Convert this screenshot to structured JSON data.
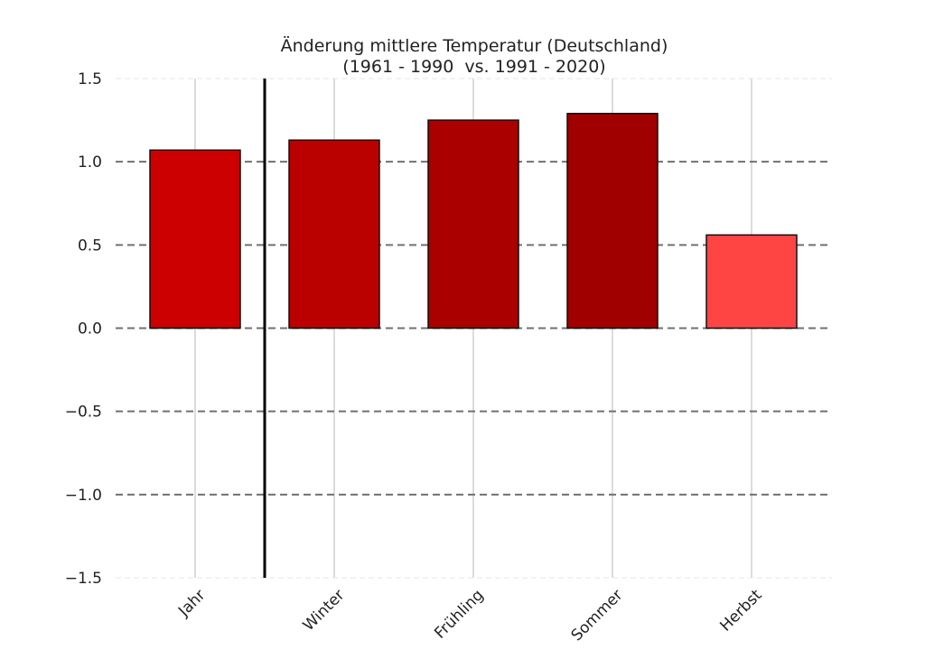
{
  "chart_data": {
    "type": "bar",
    "title": "Änderung mittlere Temperatur (Deutschland)",
    "subtitle": "(1961 - 1990  vs. 1991 - 2020)",
    "xlabel": "",
    "ylabel": "",
    "categories": [
      "Jahr",
      "Winter",
      "Frühling",
      "Sommer",
      "Herbst"
    ],
    "values": [
      1.07,
      1.13,
      1.25,
      1.29,
      0.56
    ],
    "colors": [
      "#cc0000",
      "#bb0000",
      "#aa0000",
      "#a00000",
      "#ff4444"
    ],
    "ylim": [
      -1.5,
      1.5
    ],
    "yticks": [
      -1.5,
      -1.0,
      -0.5,
      0.0,
      0.5,
      1.0,
      1.5
    ],
    "ytick_labels": [
      "−1.5",
      "−1.0",
      "−0.5",
      "0.0",
      "0.5",
      "1.0",
      "1.5"
    ],
    "grid": true,
    "separator_after_category": "Jahr"
  }
}
